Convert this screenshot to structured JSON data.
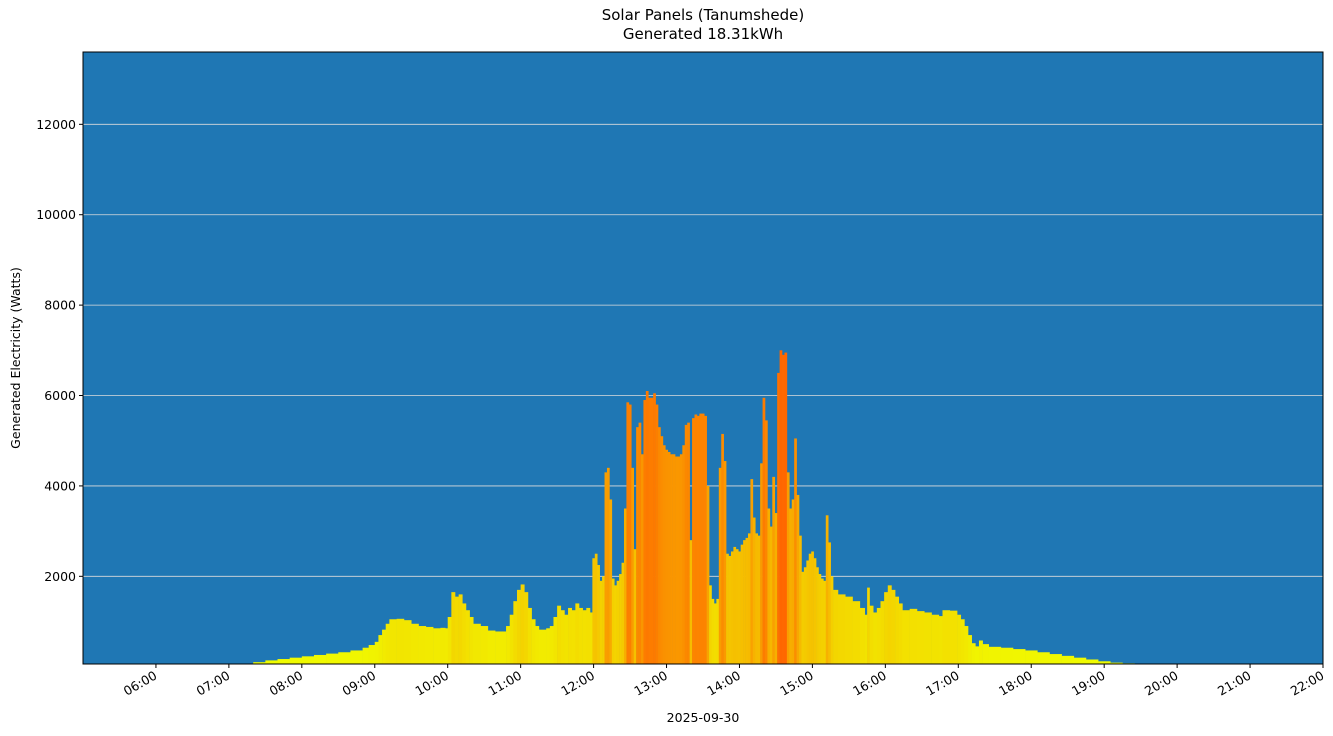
{
  "title": {
    "line1": "Solar Panels (Tanumshede)",
    "line2": "Generated 18.31kWh"
  },
  "colors": {
    "plot_background": "#1f77b4",
    "grid": "#dcdcdc",
    "low": "#f0ff00",
    "mid": "#f5c400",
    "high": "#ff6600"
  },
  "chart_data": {
    "type": "bar",
    "title": "Solar Panels (Tanumshede)\nGenerated 18.31kWh",
    "xlabel": "2025-09-30",
    "ylabel": "Generated Electricity (Watts)",
    "xlim": [
      "05:00",
      "22:00"
    ],
    "ylim": [
      60,
      13600
    ],
    "grid": "horizontal",
    "x_ticks": [
      "06:00",
      "07:00",
      "08:00",
      "09:00",
      "10:00",
      "11:00",
      "12:00",
      "13:00",
      "14:00",
      "15:00",
      "16:00",
      "17:00",
      "18:00",
      "19:00",
      "20:00",
      "21:00",
      "22:00"
    ],
    "y_ticks": [
      2000,
      4000,
      6000,
      8000,
      10000,
      12000
    ],
    "bar_color_scale": "yellow (low) to orange-red (high), by value",
    "points": [
      [
        "07:12",
        70
      ],
      [
        "07:20",
        100
      ],
      [
        "07:30",
        140
      ],
      [
        "07:40",
        170
      ],
      [
        "07:50",
        200
      ],
      [
        "08:00",
        230
      ],
      [
        "08:10",
        260
      ],
      [
        "08:20",
        290
      ],
      [
        "08:30",
        320
      ],
      [
        "08:40",
        360
      ],
      [
        "08:50",
        420
      ],
      [
        "08:55",
        480
      ],
      [
        "09:00",
        550
      ],
      [
        "09:03",
        700
      ],
      [
        "09:06",
        820
      ],
      [
        "09:09",
        950
      ],
      [
        "09:12",
        1050
      ],
      [
        "09:18",
        1060
      ],
      [
        "09:24",
        1030
      ],
      [
        "09:30",
        950
      ],
      [
        "09:36",
        900
      ],
      [
        "09:42",
        880
      ],
      [
        "09:48",
        850
      ],
      [
        "09:54",
        860
      ],
      [
        "09:58",
        850
      ],
      [
        "10:00",
        1100
      ],
      [
        "10:03",
        1650
      ],
      [
        "10:06",
        1550
      ],
      [
        "10:09",
        1600
      ],
      [
        "10:12",
        1400
      ],
      [
        "10:15",
        1250
      ],
      [
        "10:18",
        1100
      ],
      [
        "10:21",
        950
      ],
      [
        "10:27",
        900
      ],
      [
        "10:33",
        800
      ],
      [
        "10:39",
        780
      ],
      [
        "10:45",
        780
      ],
      [
        "10:48",
        900
      ],
      [
        "10:51",
        1150
      ],
      [
        "10:54",
        1450
      ],
      [
        "10:57",
        1700
      ],
      [
        "11:00",
        1820
      ],
      [
        "11:03",
        1650
      ],
      [
        "11:06",
        1300
      ],
      [
        "11:09",
        1050
      ],
      [
        "11:12",
        900
      ],
      [
        "11:15",
        820
      ],
      [
        "11:21",
        850
      ],
      [
        "11:24",
        900
      ],
      [
        "11:27",
        1100
      ],
      [
        "11:30",
        1350
      ],
      [
        "11:33",
        1250
      ],
      [
        "11:36",
        1150
      ],
      [
        "11:39",
        1300
      ],
      [
        "11:42",
        1250
      ],
      [
        "11:45",
        1400
      ],
      [
        "11:48",
        1300
      ],
      [
        "11:51",
        1250
      ],
      [
        "11:54",
        1300
      ],
      [
        "11:57",
        1200
      ],
      [
        "11:59",
        2400
      ],
      [
        "12:01",
        2500
      ],
      [
        "12:03",
        2250
      ],
      [
        "12:05",
        1900
      ],
      [
        "12:07",
        2000
      ],
      [
        "12:09",
        4300
      ],
      [
        "12:11",
        4400
      ],
      [
        "12:13",
        3700
      ],
      [
        "12:15",
        1950
      ],
      [
        "12:17",
        1800
      ],
      [
        "12:19",
        1900
      ],
      [
        "12:21",
        2050
      ],
      [
        "12:23",
        2300
      ],
      [
        "12:25",
        3500
      ],
      [
        "12:27",
        5850
      ],
      [
        "12:29",
        5800
      ],
      [
        "12:31",
        4400
      ],
      [
        "12:33",
        2600
      ],
      [
        "12:35",
        5300
      ],
      [
        "12:37",
        5400
      ],
      [
        "12:39",
        4700
      ],
      [
        "12:41",
        5900
      ],
      [
        "12:43",
        6100
      ],
      [
        "12:45",
        5950
      ],
      [
        "12:47",
        5950
      ],
      [
        "12:49",
        6050
      ],
      [
        "12:51",
        5800
      ],
      [
        "12:53",
        5300
      ],
      [
        "12:55",
        5100
      ],
      [
        "12:57",
        4900
      ],
      [
        "12:59",
        4800
      ],
      [
        "13:01",
        4750
      ],
      [
        "13:03",
        4700
      ],
      [
        "13:05",
        4700
      ],
      [
        "13:07",
        4650
      ],
      [
        "13:09",
        4650
      ],
      [
        "13:11",
        4700
      ],
      [
        "13:13",
        4900
      ],
      [
        "13:15",
        5350
      ],
      [
        "13:17",
        5400
      ],
      [
        "13:19",
        2800
      ],
      [
        "13:21",
        5500
      ],
      [
        "13:23",
        5580
      ],
      [
        "13:25",
        5550
      ],
      [
        "13:27",
        5600
      ],
      [
        "13:29",
        5600
      ],
      [
        "13:31",
        5550
      ],
      [
        "13:33",
        4000
      ],
      [
        "13:35",
        1800
      ],
      [
        "13:37",
        1500
      ],
      [
        "13:39",
        1400
      ],
      [
        "13:41",
        1500
      ],
      [
        "13:43",
        4400
      ],
      [
        "13:45",
        5150
      ],
      [
        "13:47",
        4550
      ],
      [
        "13:49",
        2500
      ],
      [
        "13:51",
        2450
      ],
      [
        "13:53",
        2550
      ],
      [
        "13:55",
        2650
      ],
      [
        "13:57",
        2600
      ],
      [
        "13:59",
        2550
      ],
      [
        "14:01",
        2700
      ],
      [
        "14:03",
        2800
      ],
      [
        "14:05",
        2850
      ],
      [
        "14:07",
        2950
      ],
      [
        "14:09",
        4150
      ],
      [
        "14:11",
        3300
      ],
      [
        "14:13",
        2950
      ],
      [
        "14:15",
        2900
      ],
      [
        "14:17",
        4500
      ],
      [
        "14:19",
        5950
      ],
      [
        "14:21",
        5450
      ],
      [
        "14:23",
        3500
      ],
      [
        "14:25",
        3100
      ],
      [
        "14:27",
        4200
      ],
      [
        "14:29",
        3400
      ],
      [
        "14:31",
        6500
      ],
      [
        "14:33",
        7000
      ],
      [
        "14:35",
        6900
      ],
      [
        "14:37",
        6950
      ],
      [
        "14:39",
        4300
      ],
      [
        "14:41",
        3500
      ],
      [
        "14:43",
        3700
      ],
      [
        "14:45",
        5050
      ],
      [
        "14:47",
        3800
      ],
      [
        "14:49",
        2900
      ],
      [
        "14:51",
        2100
      ],
      [
        "14:53",
        2200
      ],
      [
        "14:55",
        2350
      ],
      [
        "14:57",
        2500
      ],
      [
        "14:59",
        2550
      ],
      [
        "15:01",
        2400
      ],
      [
        "15:03",
        2200
      ],
      [
        "15:05",
        2050
      ],
      [
        "15:07",
        1950
      ],
      [
        "15:09",
        1900
      ],
      [
        "15:11",
        3350
      ],
      [
        "15:13",
        2750
      ],
      [
        "15:15",
        2000
      ],
      [
        "15:17",
        1700
      ],
      [
        "15:21",
        1600
      ],
      [
        "15:27",
        1550
      ],
      [
        "15:33",
        1450
      ],
      [
        "15:39",
        1300
      ],
      [
        "15:43",
        1150
      ],
      [
        "15:45",
        1750
      ],
      [
        "15:47",
        1350
      ],
      [
        "15:50",
        1200
      ],
      [
        "15:53",
        1300
      ],
      [
        "15:56",
        1450
      ],
      [
        "15:59",
        1650
      ],
      [
        "16:02",
        1800
      ],
      [
        "16:05",
        1700
      ],
      [
        "16:08",
        1550
      ],
      [
        "16:11",
        1400
      ],
      [
        "16:14",
        1250
      ],
      [
        "16:20",
        1280
      ],
      [
        "16:26",
        1230
      ],
      [
        "16:32",
        1200
      ],
      [
        "16:38",
        1150
      ],
      [
        "16:44",
        1120
      ],
      [
        "16:47",
        1250
      ],
      [
        "16:53",
        1240
      ],
      [
        "16:59",
        1150
      ],
      [
        "17:02",
        1050
      ],
      [
        "17:05",
        900
      ],
      [
        "17:08",
        700
      ],
      [
        "17:11",
        520
      ],
      [
        "17:14",
        450
      ],
      [
        "17:17",
        580
      ],
      [
        "17:20",
        500
      ],
      [
        "17:25",
        440
      ],
      [
        "17:35",
        420
      ],
      [
        "17:45",
        390
      ],
      [
        "17:55",
        360
      ],
      [
        "18:05",
        320
      ],
      [
        "18:15",
        280
      ],
      [
        "18:25",
        240
      ],
      [
        "18:35",
        200
      ],
      [
        "18:45",
        160
      ],
      [
        "18:55",
        120
      ],
      [
        "19:05",
        90
      ],
      [
        "19:15",
        75
      ],
      [
        "19:25",
        70
      ],
      [
        "19:35",
        62
      ],
      [
        "19:45",
        70
      ]
    ]
  }
}
